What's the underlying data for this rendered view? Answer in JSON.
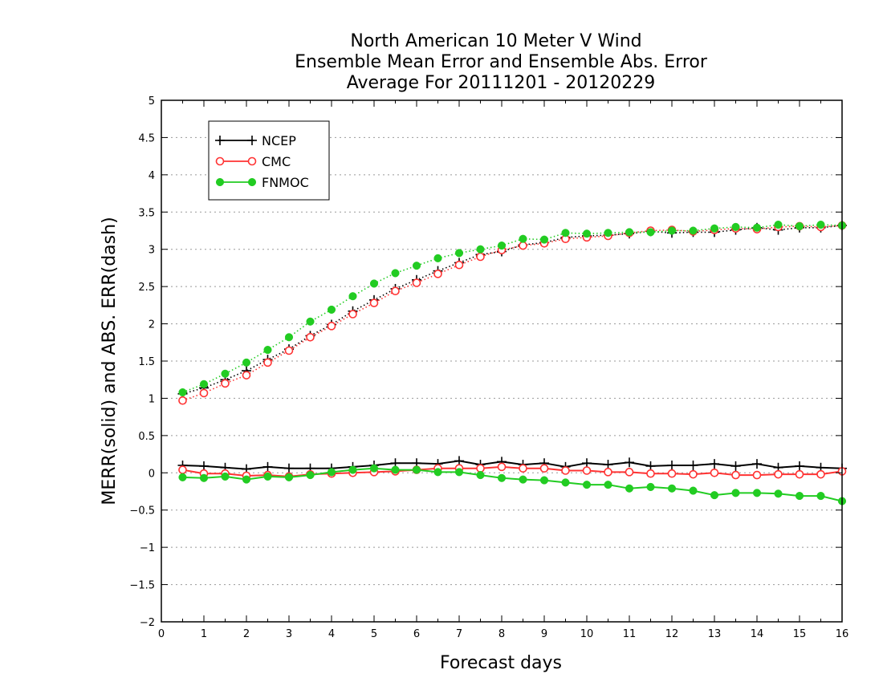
{
  "chart_data": {
    "type": "line",
    "title": [
      "North American 10 Meter V Wind",
      "Ensemble Mean Error and Ensemble Abs. Error",
      "Average For 20111201 - 20120229"
    ],
    "xlabel": "Forecast days",
    "ylabel": "MERR(solid) and ABS. ERR(dash)",
    "xlim": [
      0,
      16
    ],
    "ylim": [
      -2,
      5
    ],
    "xticks": [
      0,
      1,
      2,
      3,
      4,
      5,
      6,
      7,
      8,
      9,
      10,
      11,
      12,
      13,
      14,
      15,
      16
    ],
    "yticks": [
      -2,
      -1.5,
      -1,
      -0.5,
      0,
      0.5,
      1,
      1.5,
      2,
      2.5,
      3,
      3.5,
      4,
      4.5,
      5
    ],
    "ytick_labels": [
      "−2",
      "−1.5",
      "−1",
      "−0.5",
      "0",
      "0.5",
      "1",
      "1.5",
      "2",
      "2.5",
      "3",
      "3.5",
      "4",
      "4.5",
      "5"
    ],
    "grid": "horizontal dotted",
    "legend": {
      "position": "top-left",
      "entries": [
        "NCEP",
        "CMC",
        "FNMOC"
      ]
    },
    "x": [
      0.5,
      1,
      1.5,
      2,
      2.5,
      3,
      3.5,
      4,
      4.5,
      5,
      5.5,
      6,
      6.5,
      7,
      7.5,
      8,
      8.5,
      9,
      9.5,
      10,
      10.5,
      11,
      11.5,
      12,
      12.5,
      13,
      13.5,
      14,
      14.5,
      15,
      15.5,
      16
    ],
    "series": [
      {
        "name": "NCEP",
        "kind": "mean_error",
        "style": "solid",
        "color": "#000000",
        "marker": "plus",
        "values": [
          0.1,
          0.09,
          0.07,
          0.05,
          0.08,
          0.06,
          0.06,
          0.06,
          0.08,
          0.1,
          0.13,
          0.13,
          0.12,
          0.16,
          0.11,
          0.15,
          0.11,
          0.13,
          0.08,
          0.13,
          0.11,
          0.14,
          0.09,
          0.1,
          0.1,
          0.12,
          0.09,
          0.12,
          0.07,
          0.09,
          0.07,
          0.06
        ]
      },
      {
        "name": "CMC",
        "kind": "mean_error",
        "style": "solid",
        "color": "#ff3333",
        "marker": "open-circle",
        "values": [
          0.04,
          -0.01,
          -0.01,
          -0.04,
          -0.03,
          -0.05,
          -0.02,
          -0.01,
          0.0,
          0.01,
          0.02,
          0.04,
          0.06,
          0.06,
          0.06,
          0.08,
          0.06,
          0.06,
          0.03,
          0.03,
          0.01,
          0.01,
          -0.01,
          -0.01,
          -0.02,
          0.0,
          -0.03,
          -0.03,
          -0.02,
          -0.02,
          -0.02,
          0.02
        ]
      },
      {
        "name": "FNMOC",
        "kind": "mean_error",
        "style": "solid",
        "color": "#22cc22",
        "marker": "filled-circle",
        "values": [
          -0.06,
          -0.07,
          -0.05,
          -0.09,
          -0.05,
          -0.06,
          -0.03,
          0.01,
          0.04,
          0.06,
          0.04,
          0.04,
          0.01,
          0.01,
          -0.03,
          -0.07,
          -0.09,
          -0.1,
          -0.13,
          -0.16,
          -0.16,
          -0.21,
          -0.19,
          -0.21,
          -0.24,
          -0.3,
          -0.27,
          -0.27,
          -0.28,
          -0.31,
          -0.31,
          -0.38
        ]
      },
      {
        "name": "NCEP",
        "kind": "abs_error",
        "style": "dotted",
        "color": "#000000",
        "marker": "plus",
        "values": [
          1.06,
          1.14,
          1.25,
          1.37,
          1.52,
          1.66,
          1.84,
          1.99,
          2.17,
          2.32,
          2.47,
          2.59,
          2.71,
          2.82,
          2.93,
          2.97,
          3.06,
          3.09,
          3.16,
          3.18,
          3.19,
          3.21,
          3.24,
          3.22,
          3.23,
          3.23,
          3.26,
          3.29,
          3.26,
          3.29,
          3.29,
          3.32
        ]
      },
      {
        "name": "CMC",
        "kind": "abs_error",
        "style": "dotted",
        "color": "#ff3333",
        "marker": "open-circle",
        "values": [
          0.97,
          1.07,
          1.2,
          1.31,
          1.48,
          1.64,
          1.82,
          1.97,
          2.13,
          2.28,
          2.44,
          2.55,
          2.67,
          2.79,
          2.9,
          2.99,
          3.05,
          3.08,
          3.14,
          3.16,
          3.18,
          3.22,
          3.25,
          3.26,
          3.24,
          3.26,
          3.28,
          3.27,
          3.3,
          3.31,
          3.3,
          3.32
        ]
      },
      {
        "name": "FNMOC",
        "kind": "abs_error",
        "style": "dotted",
        "color": "#22cc22",
        "marker": "filled-circle",
        "values": [
          1.08,
          1.19,
          1.33,
          1.48,
          1.65,
          1.82,
          2.03,
          2.19,
          2.37,
          2.54,
          2.68,
          2.78,
          2.88,
          2.95,
          3.0,
          3.05,
          3.14,
          3.13,
          3.22,
          3.21,
          3.22,
          3.23,
          3.23,
          3.25,
          3.25,
          3.28,
          3.3,
          3.29,
          3.33,
          3.31,
          3.33,
          3.32
        ]
      }
    ]
  }
}
